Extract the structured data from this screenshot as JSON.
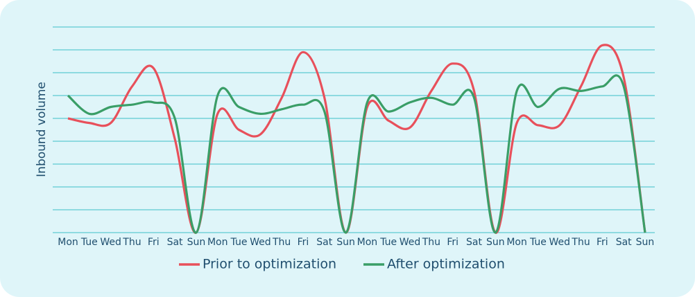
{
  "chart_data": {
    "type": "line",
    "y_label": "Inbound volume",
    "categories": [
      "Mon",
      "Tue",
      "Wed",
      "Thu",
      "Fri",
      "Sat",
      "Sun",
      "Mon",
      "Tue",
      "Wed",
      "Thu",
      "Fri",
      "Sat",
      "Sun",
      "Mon",
      "Tue",
      "Wed",
      "Thu",
      "Fri",
      "Sat",
      "Sun",
      "Mon",
      "Tue",
      "Wed",
      "Thu",
      "Fri",
      "Sat",
      "Sun"
    ],
    "series": [
      {
        "name": "Prior to optimization",
        "color": "#e8505b",
        "values": [
          5.0,
          4.8,
          4.8,
          6.4,
          7.2,
          4.1,
          0,
          5.2,
          4.5,
          4.3,
          5.9,
          7.9,
          5.9,
          0,
          5.5,
          4.9,
          4.6,
          6.2,
          7.4,
          6.2,
          0,
          4.8,
          4.7,
          4.7,
          6.4,
          8.2,
          6.8,
          0
        ]
      },
      {
        "name": "After optimization",
        "color": "#3a9e67",
        "values": [
          6.0,
          5.2,
          5.5,
          5.6,
          5.7,
          5.0,
          0,
          6.0,
          5.5,
          5.2,
          5.4,
          5.6,
          5.3,
          0,
          5.7,
          5.3,
          5.7,
          5.9,
          5.6,
          5.9,
          0,
          6.2,
          5.5,
          6.3,
          6.2,
          6.4,
          6.4,
          0
        ]
      }
    ],
    "ylim": [
      0,
      9
    ],
    "yticks": [
      0,
      1,
      2,
      3,
      4,
      5,
      6,
      7,
      8,
      9
    ],
    "grid": true
  }
}
